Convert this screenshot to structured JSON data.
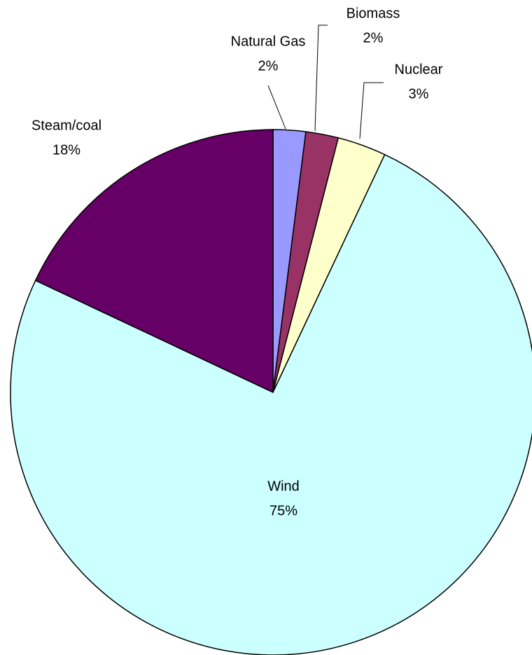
{
  "chart_data": {
    "type": "pie",
    "categories": [
      "Natural Gas",
      "Biomass",
      "Nuclear",
      "Wind",
      "Steam/coal"
    ],
    "values": [
      2,
      2,
      3,
      75,
      18
    ],
    "value_labels": [
      "2%",
      "2%",
      "3%",
      "75%",
      "18%"
    ],
    "colors": [
      "#9999ff",
      "#993366",
      "#ffffcc",
      "#ccffff",
      "#660066"
    ]
  }
}
